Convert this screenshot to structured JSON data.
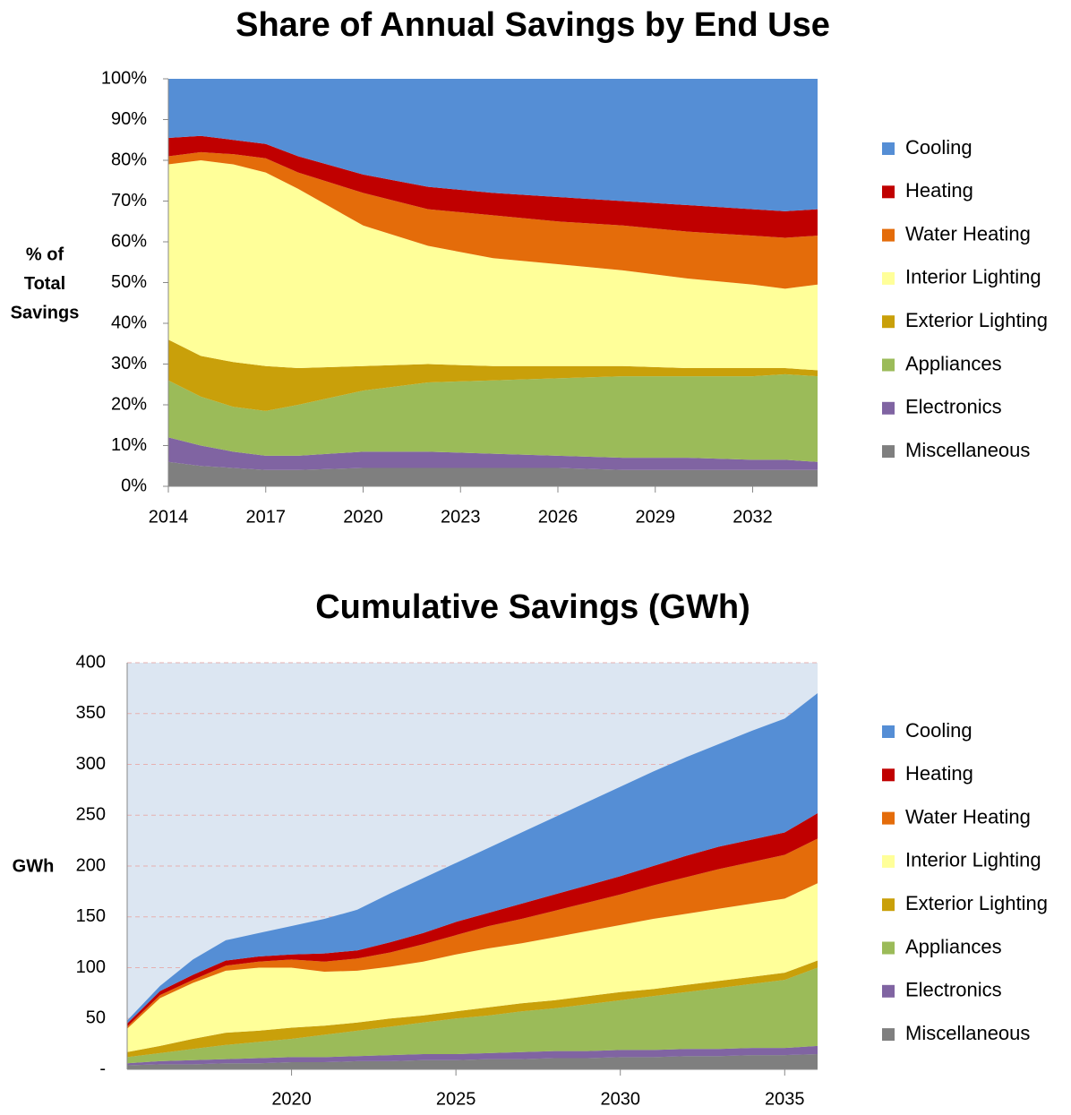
{
  "chart_data": [
    {
      "type": "area",
      "stacked": true,
      "title": "Share of Annual Savings by End Use",
      "ylabel": [
        "% of",
        "Total",
        "Savings"
      ],
      "x": [
        2014,
        2015,
        2016,
        2017,
        2018,
        2020,
        2022,
        2024,
        2026,
        2028,
        2030,
        2032,
        2033,
        2034
      ],
      "xlim": [
        2014,
        2034
      ],
      "xticks": [
        2014,
        2017,
        2020,
        2023,
        2026,
        2029,
        2032
      ],
      "ylim": [
        0,
        100
      ],
      "yticks": [
        {
          "value": 0,
          "label": "0%"
        },
        {
          "value": 10,
          "label": "10%"
        },
        {
          "value": 20,
          "label": "20%"
        },
        {
          "value": 30,
          "label": "30%"
        },
        {
          "value": 40,
          "label": "40%"
        },
        {
          "value": 50,
          "label": "50%"
        },
        {
          "value": 60,
          "label": "60%"
        },
        {
          "value": 70,
          "label": "70%"
        },
        {
          "value": 80,
          "label": "80%"
        },
        {
          "value": 90,
          "label": "90%"
        },
        {
          "value": 100,
          "label": "100%"
        }
      ],
      "grid": false,
      "plot_background": "#ffffff",
      "series": [
        {
          "name": "Miscellaneous",
          "color": "#7f7f7f",
          "values": [
            6,
            5,
            4.5,
            4,
            4,
            4.5,
            4.5,
            4.5,
            4.5,
            4,
            4,
            4,
            4,
            4
          ]
        },
        {
          "name": "Electronics",
          "color": "#8064a2",
          "values": [
            6,
            5,
            4,
            3.5,
            3.5,
            4,
            4,
            3.5,
            3,
            3,
            3,
            2.5,
            2.5,
            2
          ]
        },
        {
          "name": "Appliances",
          "color": "#9bbb59",
          "values": [
            14,
            12,
            11,
            11,
            12.5,
            15,
            17,
            18,
            19,
            20,
            20,
            20.5,
            21,
            21
          ]
        },
        {
          "name": "Exterior Lighting",
          "color": "#c9a00a",
          "values": [
            10,
            10,
            11,
            11,
            9,
            6,
            4.5,
            3.5,
            3,
            2.5,
            2,
            2,
            1.5,
            1.5
          ]
        },
        {
          "name": "Interior Lighting",
          "color": "#ffff99",
          "values": [
            43,
            48,
            48.5,
            47.5,
            44,
            34.5,
            29,
            26.5,
            25,
            23.5,
            22,
            20.5,
            19.5,
            21
          ]
        },
        {
          "name": "Water Heating",
          "color": "#e46c0a",
          "values": [
            2,
            2,
            2.5,
            3.5,
            4,
            8,
            9,
            10.5,
            10.5,
            11,
            11.5,
            12,
            12.5,
            12
          ]
        },
        {
          "name": "Heating",
          "color": "#c00000",
          "values": [
            4.5,
            4,
            3.5,
            3.5,
            4,
            4.5,
            5.5,
            5.5,
            6,
            6,
            6.5,
            6.5,
            6.5,
            6.5
          ]
        },
        {
          "name": "Cooling",
          "color": "#558ed5",
          "values": [
            14.5,
            14,
            15,
            16,
            19,
            23.5,
            26.5,
            28,
            29,
            30,
            31,
            32,
            32.5,
            32
          ]
        }
      ]
    },
    {
      "type": "area",
      "stacked": true,
      "title": "Cumulative Savings (GWh)",
      "ylabel": [
        "GWh"
      ],
      "x": [
        2015,
        2016,
        2017,
        2018,
        2019,
        2020,
        2021,
        2022,
        2023,
        2024,
        2025,
        2026,
        2027,
        2028,
        2029,
        2030,
        2031,
        2032,
        2033,
        2034,
        2035,
        2036
      ],
      "xlim": [
        2015,
        2036
      ],
      "xticks": [
        2020,
        2025,
        2030,
        2035
      ],
      "ylim": [
        0,
        400
      ],
      "yticks": [
        {
          "value": 0,
          "label": "-"
        },
        50,
        100,
        150,
        200,
        250,
        300,
        350,
        400
      ],
      "grid": true,
      "plot_background": "#dce6f2",
      "series": [
        {
          "name": "Miscellaneous",
          "color": "#7f7f7f",
          "values": [
            4,
            5,
            5,
            6,
            6,
            7,
            7,
            8,
            8,
            9,
            9,
            10,
            10,
            11,
            11,
            12,
            12,
            13,
            13,
            14,
            14,
            15
          ]
        },
        {
          "name": "Electronics",
          "color": "#8064a2",
          "values": [
            2,
            3,
            4,
            4,
            5,
            5,
            5,
            5,
            6,
            6,
            6,
            6,
            7,
            7,
            7,
            7,
            7,
            7,
            7,
            7,
            7,
            8
          ]
        },
        {
          "name": "Appliances",
          "color": "#9bbb59",
          "values": [
            6,
            8,
            11,
            14,
            16,
            18,
            22,
            25,
            28,
            31,
            35,
            37,
            40,
            42,
            46,
            49,
            53,
            56,
            60,
            63,
            67,
            77
          ]
        },
        {
          "name": "Exterior Lighting",
          "color": "#c9a00a",
          "values": [
            5,
            7,
            10,
            12,
            11,
            11,
            9,
            8,
            8,
            7,
            7,
            8,
            8,
            8,
            8,
            8,
            7,
            7,
            7,
            7,
            7,
            7
          ]
        },
        {
          "name": "Interior Lighting",
          "color": "#ffff99",
          "values": [
            23,
            47,
            55,
            61,
            62,
            59,
            53,
            51,
            51,
            53,
            56,
            58,
            59,
            62,
            64,
            66,
            69,
            70,
            71,
            72,
            73,
            76
          ]
        },
        {
          "name": "Water Heating",
          "color": "#e46c0a",
          "values": [
            2,
            3,
            3,
            5,
            6,
            8,
            10,
            12,
            14,
            17,
            19,
            22,
            24,
            26,
            28,
            30,
            33,
            36,
            39,
            41,
            43,
            44
          ]
        },
        {
          "name": "Heating",
          "color": "#c00000",
          "values": [
            3,
            4,
            5,
            5,
            5,
            5,
            8,
            8,
            10,
            11,
            13,
            13,
            15,
            16,
            17,
            18,
            19,
            21,
            22,
            22,
            22,
            25
          ]
        },
        {
          "name": "Cooling",
          "color": "#558ed5",
          "values": [
            3,
            5,
            15,
            20,
            23,
            28,
            34,
            40,
            48,
            54,
            58,
            64,
            70,
            76,
            82,
            88,
            93,
            97,
            101,
            107,
            112,
            118
          ]
        }
      ]
    }
  ]
}
